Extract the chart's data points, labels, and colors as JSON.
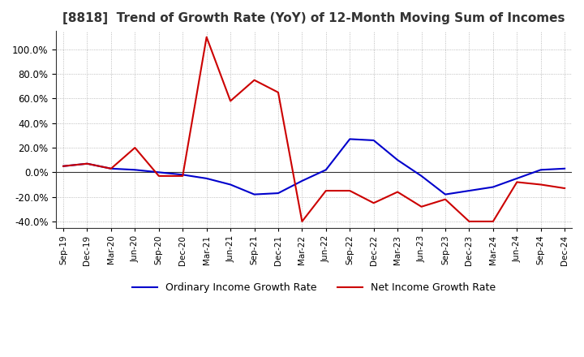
{
  "title": "[8818]  Trend of Growth Rate (YoY) of 12-Month Moving Sum of Incomes",
  "title_fontsize": 11,
  "background_color": "#ffffff",
  "grid_color": "#aaaaaa",
  "ylim": [
    -45,
    115
  ],
  "yticks": [
    -40,
    -20,
    0,
    20,
    40,
    60,
    80,
    100
  ],
  "legend_ordinary": "Ordinary Income Growth Rate",
  "legend_net": "Net Income Growth Rate",
  "ordinary_color": "#0000cc",
  "net_color": "#cc0000",
  "line_width": 1.5,
  "dates": [
    "Sep-19",
    "Dec-19",
    "Mar-20",
    "Jun-20",
    "Sep-20",
    "Dec-20",
    "Mar-21",
    "Jun-21",
    "Sep-21",
    "Dec-21",
    "Mar-22",
    "Jun-22",
    "Sep-22",
    "Dec-22",
    "Mar-23",
    "Jun-23",
    "Sep-23",
    "Dec-23",
    "Mar-24",
    "Jun-24",
    "Sep-24",
    "Dec-24"
  ],
  "ordinary_values": [
    5,
    7,
    3,
    2,
    0,
    -2,
    -5,
    -10,
    -18,
    -17,
    -7,
    2,
    27,
    26,
    10,
    -3,
    -18,
    -15,
    -12,
    -5,
    2,
    3
  ],
  "net_values": [
    5,
    7,
    3,
    20,
    -3,
    -3,
    110,
    58,
    75,
    65,
    -40,
    -15,
    -15,
    -25,
    -16,
    -28,
    -22,
    -40,
    -40,
    -8,
    -10,
    -13
  ],
  "xtick_labels": [
    "Sep-19",
    "Dec-19",
    "Mar-20",
    "Jun-20",
    "Sep-20",
    "Dec-20",
    "Mar-21",
    "Jun-21",
    "Sep-21",
    "Dec-21",
    "Mar-22",
    "Jun-22",
    "Sep-22",
    "Dec-22",
    "Mar-23",
    "Jun-23",
    "Sep-23",
    "Dec-23",
    "Mar-24",
    "Jun-24",
    "Sep-24",
    "Dec-24"
  ]
}
